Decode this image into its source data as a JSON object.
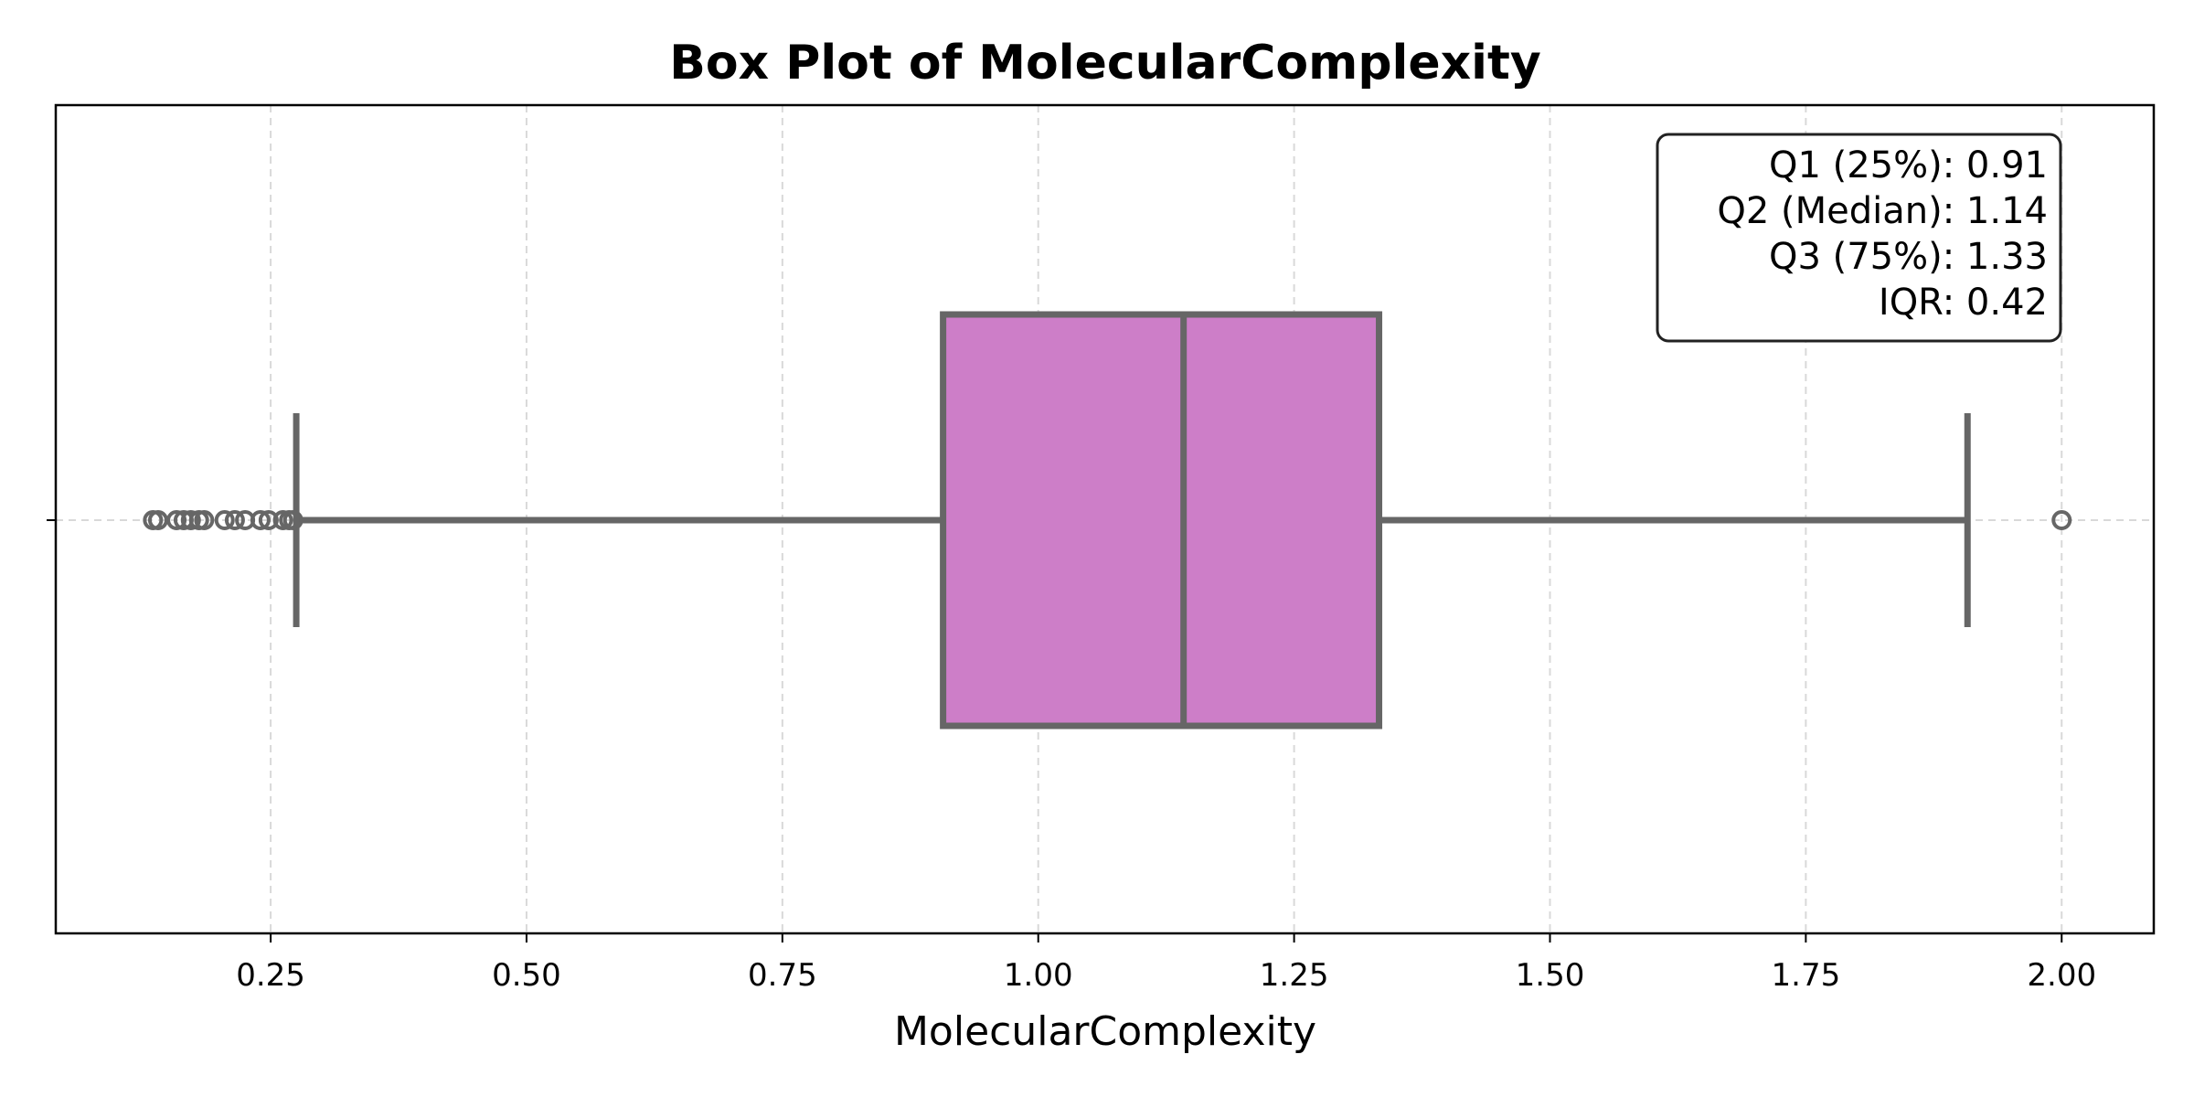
{
  "chart_data": {
    "type": "box",
    "orientation": "horizontal",
    "title": "Box Plot of MolecularComplexity",
    "xlabel": "MolecularComplexity",
    "xlim": [
      0.04,
      2.09
    ],
    "xticks": [
      0.25,
      0.5,
      0.75,
      1.0,
      1.25,
      1.5,
      1.75,
      2.0
    ],
    "xtick_labels": [
      "0.25",
      "0.50",
      "0.75",
      "1.00",
      "1.25",
      "1.50",
      "1.75",
      "2.00"
    ],
    "grid": true,
    "box": {
      "whisker_low": 0.275,
      "q1": 0.907,
      "median": 1.142,
      "q3": 1.333,
      "whisker_high": 1.908
    },
    "outliers": [
      0.135,
      0.14,
      0.158,
      0.165,
      0.172,
      0.18,
      0.185,
      0.205,
      0.215,
      0.225,
      0.24,
      0.248,
      0.262,
      0.268,
      0.272,
      2.0
    ],
    "colors": {
      "box_fill": "#cd7ec8",
      "box_edge": "#666666",
      "grid": "#d9d9d9"
    },
    "stats_box": {
      "position": "top-right",
      "lines": [
        "Q1 (25%): 0.91",
        "Q2 (Median): 1.14",
        "Q3 (75%): 1.33",
        "IQR: 0.42"
      ]
    }
  }
}
